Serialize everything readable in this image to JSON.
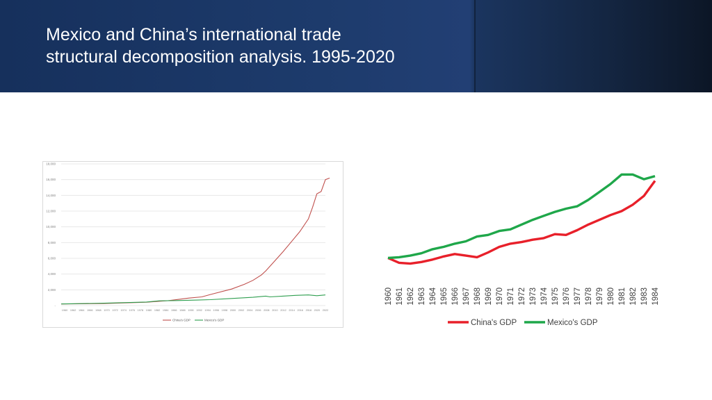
{
  "slide": {
    "title_line1": "Mexico and China’s international trade",
    "title_line2": "structural decomposition analysis. 1995-2020",
    "colors": {
      "banner": "#1d3b6c",
      "china": "#e83a3a",
      "mexico": "#2f9e50"
    }
  },
  "chart_data": [
    {
      "type": "line",
      "title": "",
      "xlabel": "",
      "ylabel": "",
      "ylim": [
        0,
        18000
      ],
      "yticks": [
        "-",
        "2,000",
        "4,000",
        "6,000",
        "8,000",
        "10,000",
        "12,000",
        "14,000",
        "16,000",
        "18,000"
      ],
      "xticks": [
        "1960",
        "1962",
        "1964",
        "1966",
        "1968",
        "1970",
        "1972",
        "1974",
        "1976",
        "1978",
        "1980",
        "1982",
        "1984",
        "1986",
        "1988",
        "1990",
        "1992",
        "1994",
        "1996",
        "1998",
        "2000",
        "2002",
        "2004",
        "2006",
        "2008",
        "2010",
        "2012",
        "2014",
        "2016",
        "2018",
        "2020",
        "2022"
      ],
      "grid": true,
      "legend": "bottom",
      "series": [
        {
          "name": "China's GDP",
          "color": "#c0504d",
          "points": [
            [
              1960,
              200
            ],
            [
              1970,
              260
            ],
            [
              1980,
              420
            ],
            [
              1985,
              620
            ],
            [
              1990,
              950
            ],
            [
              1993,
              1100
            ],
            [
              1995,
              1400
            ],
            [
              2000,
              2100
            ],
            [
              2003,
              2700
            ],
            [
              2005,
              3200
            ],
            [
              2007,
              3900
            ],
            [
              2008,
              4400
            ],
            [
              2010,
              5600
            ],
            [
              2012,
              6800
            ],
            [
              2014,
              8100
            ],
            [
              2016,
              9400
            ],
            [
              2018,
              11000
            ],
            [
              2019,
              12500
            ],
            [
              2020,
              14200
            ],
            [
              2021,
              14500
            ],
            [
              2022,
              16000
            ],
            [
              2023,
              16200
            ]
          ]
        },
        {
          "name": "Mexico's GDP",
          "color": "#2e9e4f",
          "points": [
            [
              1960,
              200
            ],
            [
              1970,
              300
            ],
            [
              1980,
              450
            ],
            [
              1983,
              600
            ],
            [
              1988,
              640
            ],
            [
              1992,
              700
            ],
            [
              1995,
              750
            ],
            [
              2000,
              900
            ],
            [
              2005,
              1050
            ],
            [
              2008,
              1200
            ],
            [
              2009,
              1100
            ],
            [
              2012,
              1200
            ],
            [
              2015,
              1300
            ],
            [
              2018,
              1350
            ],
            [
              2020,
              1250
            ],
            [
              2022,
              1350
            ]
          ]
        }
      ]
    },
    {
      "type": "line",
      "title": "",
      "xlabel": "",
      "ylabel": "",
      "legend": "bottom",
      "categories": [
        "1960",
        "1961",
        "1962",
        "1963",
        "1964",
        "1965",
        "1966",
        "1967",
        "1968",
        "1969",
        "1970",
        "1971",
        "1972",
        "1973",
        "1974",
        "1975",
        "1976",
        "1977",
        "1978",
        "1979",
        "1980",
        "1981",
        "1982",
        "1983",
        "1984"
      ],
      "series": [
        {
          "name": "China's GDP",
          "color": "#e8202a",
          "values": [
            10,
            4,
            3,
            5,
            8,
            12,
            15,
            13,
            11,
            17,
            24,
            28,
            30,
            33,
            35,
            40,
            39,
            45,
            52,
            58,
            64,
            69,
            77,
            88,
            107
          ]
        },
        {
          "name": "Mexico's GDP",
          "color": "#1fa74a",
          "values": [
            10,
            11,
            13,
            16,
            21,
            24,
            28,
            31,
            37,
            39,
            44,
            46,
            52,
            58,
            63,
            68,
            72,
            75,
            83,
            93,
            103,
            115,
            115,
            109,
            113
          ]
        }
      ]
    }
  ]
}
